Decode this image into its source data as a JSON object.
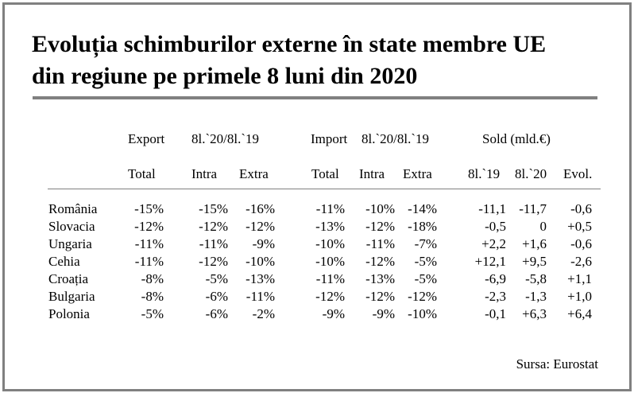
{
  "title": {
    "line1": "Evoluția schimburilor externe în state membre UE",
    "line2": "din regiune pe primele 8 luni din 2020"
  },
  "header": {
    "export": "Export",
    "export_period": "8l.`20/8l.`19",
    "import": "Import",
    "import_period": "8l.`20/8l.`19",
    "sold": "Sold (mld.€)"
  },
  "subheader": [
    "Total",
    "Intra",
    "Extra",
    "Total",
    "Intra",
    "Extra",
    "8l.`19",
    "8l.`20",
    "Evol."
  ],
  "rows": [
    {
      "country": "România",
      "values": [
        "-15%",
        "-15%",
        "-16%",
        "-11%",
        "-10%",
        "-14%",
        "-11,1",
        "-11,7",
        "-0,6"
      ]
    },
    {
      "country": "Slovacia",
      "values": [
        "-12%",
        "-12%",
        "-12%",
        "-13%",
        "-12%",
        "-18%",
        "-0,5",
        "0",
        "+0,5"
      ]
    },
    {
      "country": "Ungaria",
      "values": [
        "-11%",
        "-11%",
        "-9%",
        "-10%",
        "-11%",
        "-7%",
        "+2,2",
        "+1,6",
        "-0,6"
      ]
    },
    {
      "country": "Cehia",
      "values": [
        "-11%",
        "-12%",
        "-10%",
        "-10%",
        "-12%",
        "-5%",
        "+12,1",
        "+9,5",
        "-2,6"
      ]
    },
    {
      "country": "Croația",
      "values": [
        "-8%",
        "-5%",
        "-13%",
        "-11%",
        "-13%",
        "-5%",
        "-6,9",
        "-5,8",
        "+1,1"
      ]
    },
    {
      "country": "Bulgaria",
      "values": [
        "-8%",
        "-6%",
        "-11%",
        "-12%",
        "-12%",
        "-12%",
        "-2,3",
        "-1,3",
        "+1,0"
      ]
    },
    {
      "country": "Polonia",
      "values": [
        "-5%",
        "-6%",
        "-2%",
        "-9%",
        "-9%",
        "-10%",
        "-0,1",
        "+6,3",
        "+6,4"
      ]
    }
  ],
  "source": "Sursa: Eurostat"
}
